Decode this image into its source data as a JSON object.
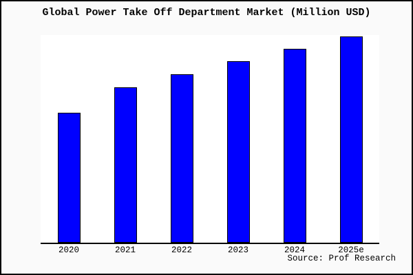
{
  "window": {
    "background_color": "#fafafa",
    "frame_border_color": "#000000",
    "plot_background_color": "#ffffff",
    "axis_color": "#000000"
  },
  "chart": {
    "title": "Global Power Take Off Department Market (Million USD)",
    "source": "Source: Prof Research",
    "bar_color": "#0000ff",
    "bar_border_color": "#000000"
  },
  "chart_data": {
    "type": "bar",
    "title": "Global Power Take Off Department Market (Million USD)",
    "categories": [
      "2020",
      "2021",
      "2022",
      "2023",
      "2024",
      "2025e"
    ],
    "values": [
      189,
      226,
      245,
      264,
      282,
      300
    ],
    "xlabel": "",
    "ylabel": "",
    "ylim": [
      0,
      302
    ],
    "grid": false,
    "legend": false,
    "y_axis_ticks_visible": false,
    "annotations": [
      "Source: Prof Research"
    ]
  }
}
